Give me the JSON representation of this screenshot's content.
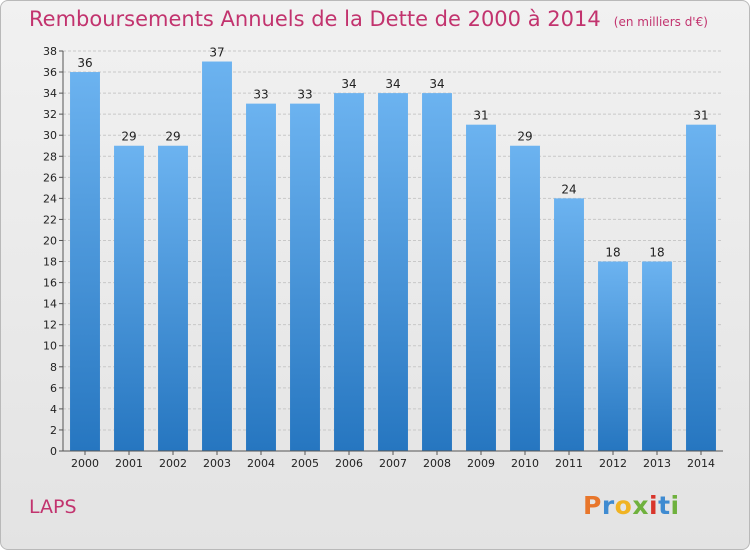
{
  "header": {
    "title": "Remboursements Annuels de la Dette de 2000 à 2014",
    "subtitle": "(en milliers d'€)"
  },
  "footer": {
    "commune": "LAPS",
    "logo_text": "Proxiti",
    "logo_colors": [
      "#e8762b",
      "#3f8bd1",
      "#f0b323",
      "#6fb13d",
      "#d8352b",
      "#3f8bd1",
      "#6fb13d"
    ]
  },
  "colors": {
    "bar_light": "#6cb3f0",
    "bar_dark": "#2676c0",
    "title": "#c2336e",
    "grid": "#c8c8c8"
  },
  "chart_data": {
    "type": "bar",
    "title": "Remboursements Annuels de la Dette de 2000 à 2014",
    "subtitle": "(en milliers d'€)",
    "categories": [
      "2000",
      "2001",
      "2002",
      "2003",
      "2004",
      "2005",
      "2006",
      "2007",
      "2008",
      "2009",
      "2010",
      "2011",
      "2012",
      "2013",
      "2014"
    ],
    "values": [
      36,
      29,
      29,
      37,
      33,
      33,
      34,
      34,
      34,
      31,
      29,
      24,
      18,
      18,
      31
    ],
    "ylim": [
      0,
      38
    ],
    "ytick_step": 2,
    "grid": true,
    "data_labels": true
  }
}
